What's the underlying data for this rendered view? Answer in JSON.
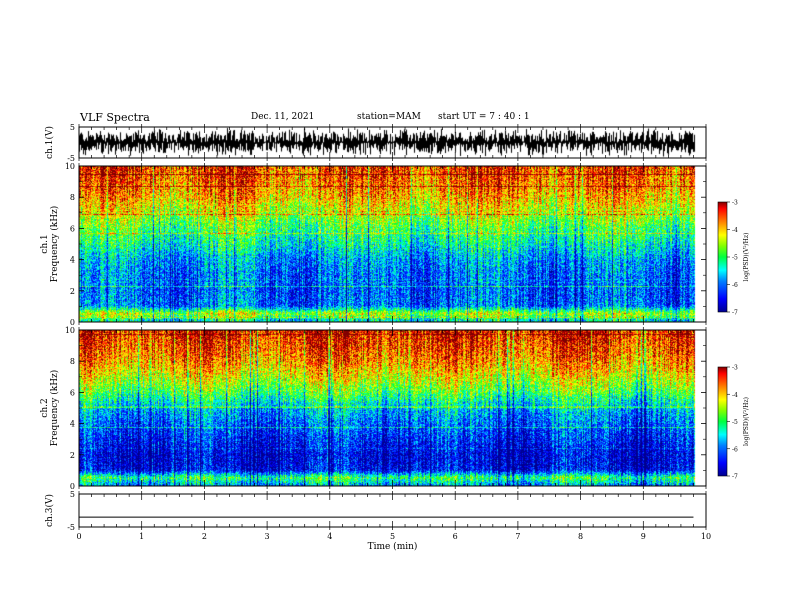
{
  "header": {
    "title": "VLF Spectra",
    "date": "Dec. 11, 2021",
    "station": "station=MAM",
    "start": "start UT =  7 : 40 : 1"
  },
  "colors": {
    "colormap": [
      "#00008f",
      "#0000ff",
      "#0080ff",
      "#00ffff",
      "#00ff80",
      "#80ff00",
      "#ffff00",
      "#ff8000",
      "#ff0000",
      "#800000"
    ]
  },
  "chart_data": [
    {
      "type": "line",
      "name": "ch1-waveform",
      "ylabel": "ch.1(V)",
      "ylim": [
        -5,
        5
      ],
      "yticks": [
        "5",
        "-5"
      ],
      "xlim": [
        0,
        10
      ],
      "amplitude_range": [
        -4.7,
        4.8
      ],
      "grid": false
    },
    {
      "type": "heatmap",
      "name": "ch1-spectrogram",
      "ylabel": [
        "ch.1",
        "Frequency (kHz)"
      ],
      "ylim": [
        0,
        10
      ],
      "yticks": [
        "0",
        "2",
        "4",
        "6",
        "8",
        "10"
      ],
      "xlim": [
        0,
        10
      ],
      "colorbar": {
        "label": "log(PSD)(V²/Hz)",
        "range": [
          -7,
          -3
        ],
        "ticks": [
          "-3",
          "-4",
          "-5",
          "-6",
          "-7"
        ]
      },
      "profile": {
        "freq_khz": [
          0,
          0.5,
          1,
          2,
          3,
          4,
          5,
          6,
          7,
          8,
          9,
          10
        ],
        "log_psd": [
          -5.6,
          -4.4,
          -6.0,
          -6.1,
          -6.0,
          -5.8,
          -5.3,
          -4.9,
          -4.4,
          -3.9,
          -3.6,
          -3.4
        ]
      }
    },
    {
      "type": "heatmap",
      "name": "ch2-spectrogram",
      "ylabel": [
        "ch.2",
        "Frequency (kHz)"
      ],
      "ylim": [
        0,
        10
      ],
      "yticks": [
        "0",
        "2",
        "4",
        "6",
        "8",
        "10"
      ],
      "xlim": [
        0,
        10
      ],
      "colorbar": {
        "label": "log(PSD)(V²/Hz)",
        "range": [
          -7,
          -3
        ],
        "ticks": [
          "-3",
          "-4",
          "-5",
          "-6",
          "-7"
        ]
      },
      "profile": {
        "freq_khz": [
          0,
          0.5,
          1,
          2,
          3,
          4,
          5,
          6,
          7,
          8,
          9,
          10
        ],
        "log_psd": [
          -5.8,
          -4.9,
          -6.5,
          -6.6,
          -6.3,
          -6.0,
          -5.6,
          -4.8,
          -4.2,
          -3.7,
          -3.4,
          -3.2
        ]
      }
    },
    {
      "type": "line",
      "name": "ch3-waveform",
      "ylabel": "ch.3(V)",
      "ylim": [
        -5,
        5
      ],
      "yticks": [
        "5",
        "-5"
      ],
      "xlim": [
        0,
        10
      ],
      "y": [
        -2,
        -2
      ],
      "x": [
        0,
        9.8
      ],
      "xlabel": "Time (min)",
      "xticks": [
        "0",
        "1",
        "2",
        "3",
        "4",
        "5",
        "6",
        "7",
        "8",
        "9",
        "10"
      ]
    }
  ]
}
